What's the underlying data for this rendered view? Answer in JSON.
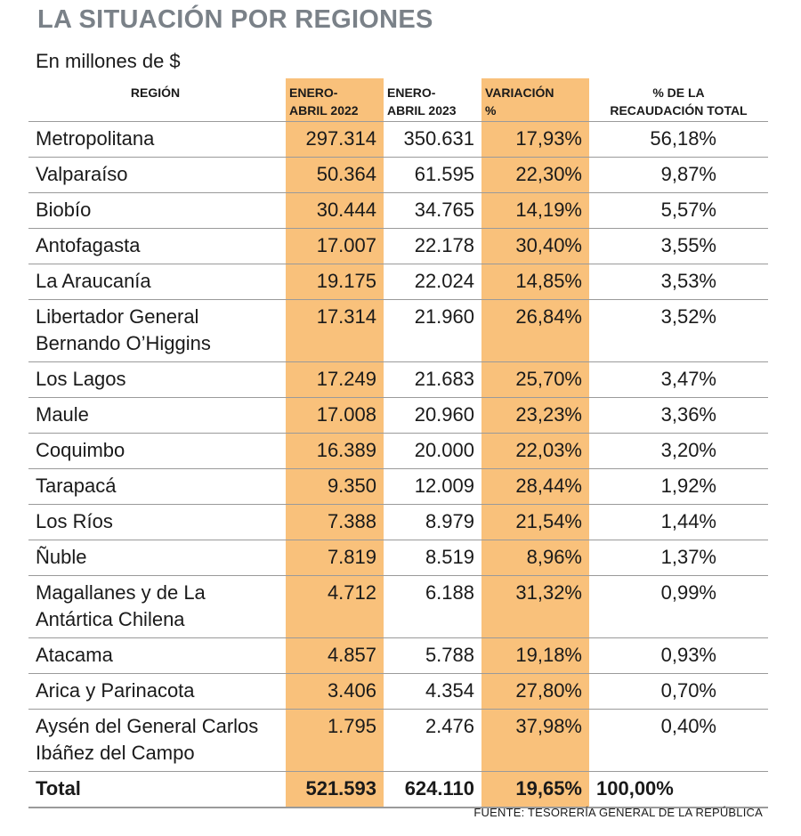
{
  "title": "LA SITUACIÓN POR REGIONES",
  "subtitle": "En millones de $",
  "headers": {
    "region": "REGIÓN",
    "enero_2022_l1": "ENERO-",
    "enero_2022_l2": "ABRIL 2022",
    "enero_2023_l1": "ENERO-",
    "enero_2023_l2": "ABRIL 2023",
    "variacion_l1": "VARIACIÓN",
    "variacion_l2": "%",
    "recaudacion_l1": "% DE LA",
    "recaudacion_l2": "RECAUDACIÓN TOTAL"
  },
  "rows": [
    {
      "region": "Metropolitana",
      "y2022": "297.314",
      "y2023": "350.631",
      "var": "17,93%",
      "pct": "56,18%"
    },
    {
      "region": "Valparaíso",
      "y2022": "50.364",
      "y2023": "61.595",
      "var": "22,30%",
      "pct": "9,87%"
    },
    {
      "region": "Biobío",
      "y2022": "30.444",
      "y2023": "34.765",
      "var": "14,19%",
      "pct": "5,57%"
    },
    {
      "region": "Antofagasta",
      "y2022": "17.007",
      "y2023": "22.178",
      "var": "30,40%",
      "pct": "3,55%"
    },
    {
      "region": "La Araucanía",
      "y2022": "19.175",
      "y2023": "22.024",
      "var": "14,85%",
      "pct": "3,53%"
    },
    {
      "region": "Libertador General Bernando O’Higgins",
      "y2022": "17.314",
      "y2023": "21.960",
      "var": "26,84%",
      "pct": "3,52%"
    },
    {
      "region": "Los Lagos",
      "y2022": "17.249",
      "y2023": "21.683",
      "var": "25,70%",
      "pct": "3,47%"
    },
    {
      "region": "Maule",
      "y2022": "17.008",
      "y2023": "20.960",
      "var": "23,23%",
      "pct": "3,36%"
    },
    {
      "region": "Coquimbo",
      "y2022": "16.389",
      "y2023": "20.000",
      "var": "22,03%",
      "pct": "3,20%"
    },
    {
      "region": "Tarapacá",
      "y2022": "9.350",
      "y2023": "12.009",
      "var": "28,44%",
      "pct": "1,92%"
    },
    {
      "region": "Los Ríos",
      "y2022": "7.388",
      "y2023": "8.979",
      "var": "21,54%",
      "pct": "1,44%"
    },
    {
      "region": "Ñuble",
      "y2022": "7.819",
      "y2023": "8.519",
      "var": "8,96%",
      "pct": "1,37%"
    },
    {
      "region": "Magallanes y de La Antártica Chilena",
      "y2022": "4.712",
      "y2023": "6.188",
      "var": "31,32%",
      "pct": "0,99%"
    },
    {
      "region": "Atacama",
      "y2022": "4.857",
      "y2023": "5.788",
      "var": "19,18%",
      "pct": "0,93%"
    },
    {
      "region": "Arica y Parinacota",
      "y2022": "3.406",
      "y2023": "4.354",
      "var": "27,80%",
      "pct": "0,70%"
    },
    {
      "region": "Aysén del General Carlos Ibáñez del Campo",
      "y2022": "1.795",
      "y2023": "2.476",
      "var": "37,98%",
      "pct": "0,40%"
    }
  ],
  "total": {
    "region": "Total",
    "y2022": "521.593",
    "y2023": "624.110",
    "var": "19,65%",
    "pct": "100,00%"
  },
  "source": "FUENTE: TESORERÍA GENERAL DE LA REPÚBLICA",
  "colors": {
    "highlight": "#f9c17b",
    "title": "#7a8188",
    "rule": "#9a9a9a"
  }
}
